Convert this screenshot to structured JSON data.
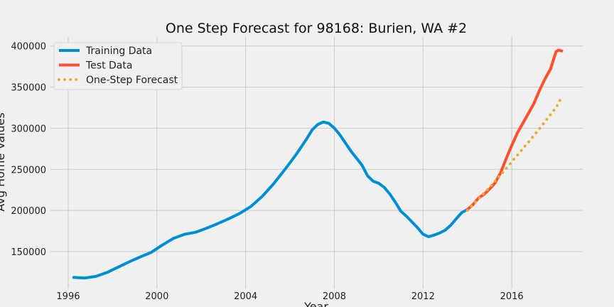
{
  "chart_data": {
    "type": "line",
    "title": "One Step Forecast for 98168: Burien, WA #2",
    "xlabel": "Year",
    "ylabel": "Avg Home Values",
    "xlim": [
      1995.2,
      2019.2
    ],
    "ylim": [
      105000,
      411000
    ],
    "x_ticks": [
      1996,
      2000,
      2004,
      2008,
      2012,
      2016
    ],
    "y_ticks": [
      150000,
      200000,
      250000,
      300000,
      350000,
      400000
    ],
    "grid": true,
    "legend_position": "upper-left",
    "series": [
      {
        "name": "Training Data",
        "color": "#008fd5",
        "style": "solid",
        "points": [
          [
            1996.25,
            118500
          ],
          [
            1996.75,
            117800
          ],
          [
            1997.25,
            119800
          ],
          [
            1997.75,
            124500
          ],
          [
            1998.25,
            131000
          ],
          [
            1998.75,
            137500
          ],
          [
            1999.25,
            143500
          ],
          [
            1999.75,
            149000
          ],
          [
            2000.25,
            158000
          ],
          [
            2000.75,
            166000
          ],
          [
            2001.25,
            171000
          ],
          [
            2001.75,
            173500
          ],
          [
            2002.25,
            178500
          ],
          [
            2002.75,
            184000
          ],
          [
            2003.25,
            190000
          ],
          [
            2003.75,
            196500
          ],
          [
            2004.25,
            205000
          ],
          [
            2004.75,
            217000
          ],
          [
            2005.25,
            232000
          ],
          [
            2005.75,
            249000
          ],
          [
            2006.25,
            267000
          ],
          [
            2006.75,
            287000
          ],
          [
            2007.0,
            298000
          ],
          [
            2007.25,
            304500
          ],
          [
            2007.5,
            307500
          ],
          [
            2007.75,
            306000
          ],
          [
            2008.0,
            300000
          ],
          [
            2008.25,
            292000
          ],
          [
            2008.75,
            272000
          ],
          [
            2009.25,
            255000
          ],
          [
            2009.5,
            242000
          ],
          [
            2009.75,
            235500
          ],
          [
            2010.0,
            233000
          ],
          [
            2010.25,
            228000
          ],
          [
            2010.5,
            220000
          ],
          [
            2010.75,
            210000
          ],
          [
            2011.0,
            199000
          ],
          [
            2011.25,
            193000
          ],
          [
            2011.5,
            186000
          ],
          [
            2011.75,
            179000
          ],
          [
            2012.0,
            171000
          ],
          [
            2012.25,
            168000
          ],
          [
            2012.5,
            170000
          ],
          [
            2012.75,
            172500
          ],
          [
            2013.0,
            176000
          ],
          [
            2013.25,
            182000
          ],
          [
            2013.5,
            190000
          ],
          [
            2013.75,
            197500
          ],
          [
            2014.0,
            201000
          ]
        ]
      },
      {
        "name": "Test Data",
        "color": "#fc4f30",
        "style": "solid",
        "points": [
          [
            2014.0,
            201000
          ],
          [
            2014.25,
            207000
          ],
          [
            2014.5,
            215000
          ],
          [
            2014.75,
            219500
          ],
          [
            2015.0,
            226000
          ],
          [
            2015.25,
            233500
          ],
          [
            2015.5,
            246000
          ],
          [
            2015.75,
            263000
          ],
          [
            2016.0,
            279000
          ],
          [
            2016.25,
            294000
          ],
          [
            2016.5,
            306000
          ],
          [
            2016.75,
            318000
          ],
          [
            2017.0,
            330000
          ],
          [
            2017.25,
            346000
          ],
          [
            2017.5,
            360000
          ],
          [
            2017.75,
            372000
          ],
          [
            2017.9,
            385000
          ],
          [
            2018.0,
            393000
          ],
          [
            2018.1,
            395000
          ],
          [
            2018.25,
            394000
          ]
        ]
      },
      {
        "name": "One-Step Forecast",
        "color": "#e5ae38",
        "style": "dotted",
        "points": [
          [
            2014.0,
            200000
          ],
          [
            2014.5,
            214000
          ],
          [
            2015.0,
            228000
          ],
          [
            2015.5,
            243000
          ],
          [
            2016.0,
            259000
          ],
          [
            2016.5,
            275000
          ],
          [
            2017.0,
            291000
          ],
          [
            2017.5,
            308000
          ],
          [
            2018.0,
            325000
          ],
          [
            2018.25,
            338000
          ]
        ]
      }
    ]
  }
}
